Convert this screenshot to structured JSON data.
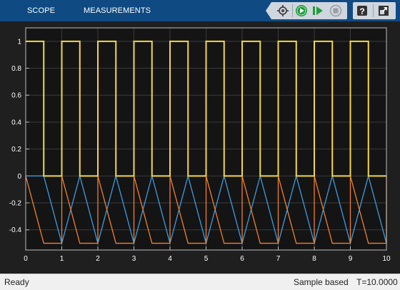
{
  "toolstrip": {
    "tabs": [
      {
        "label": "SCOPE"
      },
      {
        "label": "MEASUREMENTS"
      }
    ],
    "buttons": [
      {
        "name": "signal-selector-icon"
      },
      {
        "name": "run-icon"
      },
      {
        "name": "step-forward-icon"
      },
      {
        "name": "stop-icon"
      },
      {
        "name": "help-icon"
      },
      {
        "name": "undock-icon"
      }
    ],
    "colors": {
      "background": "#0f4a82",
      "buttons": "#cfd6de"
    }
  },
  "chart_data": {
    "type": "line",
    "title": "",
    "xlabel": "",
    "ylabel": "",
    "xlim": [
      0,
      10
    ],
    "ylim": [
      -0.55,
      1.1
    ],
    "grid": true,
    "background": "#141414",
    "xticks": [
      "0",
      "1",
      "2",
      "3",
      "4",
      "5",
      "6",
      "7",
      "8",
      "9",
      "10"
    ],
    "yticks": [
      "-0.4",
      "-0.2",
      "0",
      "0.2",
      "0.4",
      "0.6",
      "0.8",
      "1"
    ],
    "series": [
      {
        "color": "#f5d647",
        "x": [
          0,
          0.5,
          0.5,
          1,
          1,
          1.5,
          1.5,
          2,
          2,
          2.5,
          2.5,
          3,
          3,
          3.5,
          3.5,
          4,
          4,
          4.5,
          4.5,
          5,
          5,
          5.5,
          5.5,
          6,
          6,
          6.5,
          6.5,
          7,
          7,
          7.5,
          7.5,
          8,
          8,
          8.5,
          8.5,
          9,
          9,
          9.5,
          9.5,
          10
        ],
        "y": [
          1,
          1,
          0,
          0,
          1,
          1,
          0,
          0,
          1,
          1,
          0,
          0,
          1,
          1,
          0,
          0,
          1,
          1,
          0,
          0,
          1,
          1,
          0,
          0,
          1,
          1,
          0,
          0,
          1,
          1,
          0,
          0,
          1,
          1,
          0,
          0,
          1,
          1,
          0,
          0
        ]
      },
      {
        "color": "#3e9be0",
        "x": [
          0,
          0.5,
          1,
          1.5,
          2,
          2.5,
          3,
          3.5,
          4,
          4.5,
          5,
          5.5,
          6,
          6.5,
          7,
          7.5,
          8,
          8.5,
          9,
          9.5,
          10
        ],
        "y": [
          0,
          0,
          -0.5,
          0,
          -0.5,
          0,
          -0.5,
          0,
          -0.5,
          0,
          -0.5,
          0,
          -0.5,
          0,
          -0.5,
          0,
          -0.5,
          0,
          -0.5,
          0,
          -0.5
        ]
      },
      {
        "color": "#f07f30",
        "x": [
          0,
          0.5,
          1,
          1,
          1.5,
          2,
          2,
          2.5,
          3,
          3,
          3.5,
          4,
          4,
          4.5,
          5,
          5,
          5.5,
          6,
          6,
          6.5,
          7,
          7,
          7.5,
          8,
          8,
          8.5,
          9,
          9,
          9.5,
          10,
          10
        ],
        "y": [
          0,
          -0.5,
          -0.5,
          0,
          -0.5,
          -0.5,
          0,
          -0.5,
          -0.5,
          0,
          -0.5,
          -0.5,
          0,
          -0.5,
          -0.5,
          0,
          -0.5,
          -0.5,
          0,
          -0.5,
          -0.5,
          0,
          -0.5,
          -0.5,
          0,
          -0.5,
          -0.5,
          0,
          -0.5,
          -0.5,
          0
        ]
      }
    ]
  },
  "status": {
    "ready": "Ready",
    "mode": "Sample based",
    "time": "T=10.0000"
  }
}
